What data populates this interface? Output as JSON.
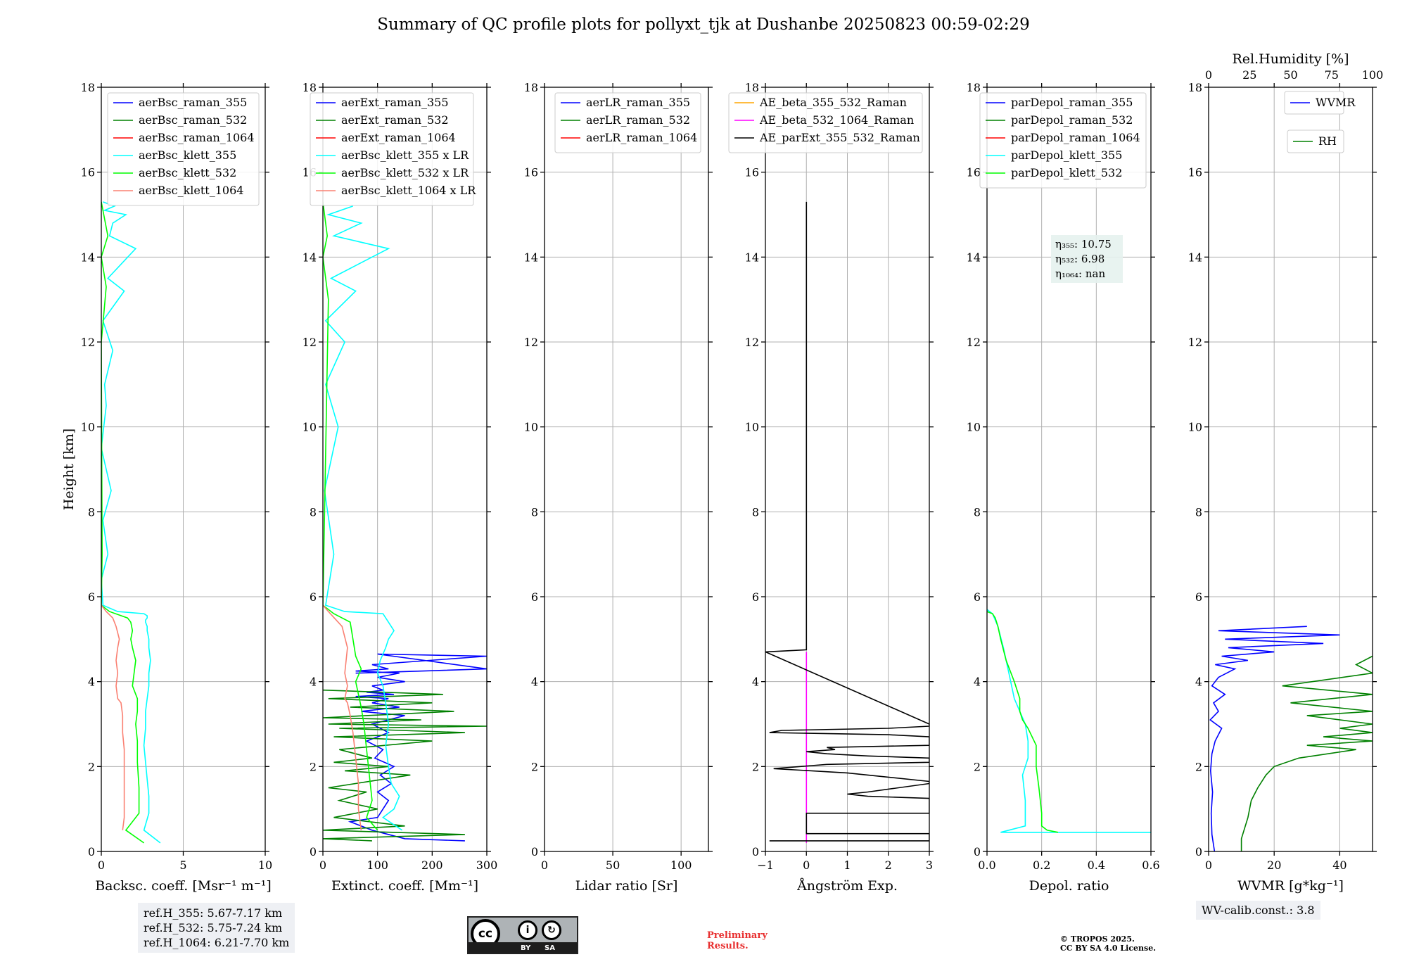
{
  "figure": {
    "title": "Summary of QC profile plots for pollyxt_tjk at Dushanbe 20250823 00:59-02:29",
    "ref_heights": [
      "ref.H_355: 5.67-7.17 km",
      "ref.H_532: 5.75-7.24 km",
      "ref.H_1064: 6.21-7.70 km"
    ],
    "wv_calib": "WV-calib.const.: 3.8",
    "preliminary": [
      "Preliminary",
      "Results."
    ],
    "copyright": [
      "© TROPOS 2025.",
      "CC BY SA 4.0 License."
    ],
    "license_badge": {
      "circle": "cc",
      "by": "BY",
      "sa": "SA",
      "by_icon": "person-icon",
      "sa_icon": "share-alike-icon"
    }
  },
  "colors": {
    "raman_355": "#0000ff",
    "raman_532": "#008000",
    "raman_1064": "#ff0000",
    "klett_355": "#00ffff",
    "klett_532": "#00ff00",
    "klett_1064": "#fa8072",
    "ae_beta_355_532": "#ffa500",
    "ae_beta_532_1064": "#ff00ff",
    "ae_parext": "#000000",
    "wvmr": "#0000ff",
    "rh": "#008000"
  },
  "chart_data": [
    {
      "type": "line",
      "id": "backscatter",
      "xlabel": "Backsc. coeff. [Msr⁻¹ m⁻¹]",
      "ylabel": "Height [km]",
      "xlim": [
        0,
        10
      ],
      "ylim": [
        0,
        18
      ],
      "xticks": [
        0,
        5,
        10
      ],
      "yticks": [
        0,
        2,
        4,
        6,
        8,
        10,
        12,
        14,
        16,
        18
      ],
      "legend": "top-left",
      "series": [
        {
          "name": "aerBsc_raman_355",
          "color": "#0000ff",
          "x": [],
          "y": []
        },
        {
          "name": "aerBsc_raman_532",
          "color": "#008000",
          "x": [],
          "y": []
        },
        {
          "name": "aerBsc_raman_1064",
          "color": "#ff0000",
          "x": [],
          "y": []
        },
        {
          "name": "aerBsc_klett_355",
          "color": "#00ffff",
          "x": [
            3.6,
            2.6,
            2.9,
            2.9,
            2.8,
            2.7,
            2.6,
            2.7,
            2.7,
            2.8,
            2.9,
            2.9,
            3.0,
            2.9,
            2.9,
            2.8,
            2.8,
            2.7,
            2.7,
            2.8,
            2.8,
            2.6,
            1.0,
            0.1,
            0.0,
            0.4,
            0.1,
            0.6,
            0.0,
            0.3,
            0.2,
            0.7,
            0.1,
            1.4,
            0.4,
            2.1,
            0.5,
            0.7,
            1.5,
            0.2,
            0.8,
            0.1
          ],
          "y": [
            0.2,
            0.5,
            0.9,
            1.3,
            1.7,
            2.1,
            2.5,
            2.9,
            3.3,
            3.6,
            3.9,
            4.2,
            4.5,
            4.8,
            5.0,
            5.2,
            5.3,
            5.4,
            5.45,
            5.5,
            5.55,
            5.6,
            5.65,
            5.8,
            6.4,
            7.0,
            7.8,
            8.5,
            9.5,
            10.5,
            11.0,
            11.8,
            12.5,
            13.2,
            13.5,
            14.2,
            14.5,
            14.8,
            15.0,
            15.1,
            15.2,
            15.3
          ]
        },
        {
          "name": "aerBsc_klett_532",
          "color": "#00ff00",
          "x": [
            2.6,
            1.5,
            2.3,
            2.3,
            2.2,
            2.2,
            2.1,
            2.2,
            2.2,
            1.9,
            2.0,
            2.1,
            1.9,
            1.8,
            1.9,
            1.8,
            1.6,
            0.5,
            0.0,
            0.05,
            0.0,
            0.3,
            0.0,
            0.4,
            0.0
          ],
          "y": [
            0.2,
            0.5,
            0.9,
            1.5,
            2.1,
            2.6,
            3.0,
            3.3,
            3.6,
            3.9,
            4.2,
            4.5,
            4.8,
            5.0,
            5.2,
            5.4,
            5.5,
            5.65,
            5.8,
            7.0,
            12.0,
            13.3,
            14.0,
            14.5,
            15.3
          ]
        },
        {
          "name": "aerBsc_klett_1064",
          "color": "#fa8072",
          "x": [
            1.3,
            1.4,
            1.4,
            1.4,
            1.4,
            1.3,
            1.3,
            1.2,
            1.0,
            0.9,
            1.0,
            0.9,
            1.0,
            1.1,
            0.9,
            0.7,
            0.3,
            0.0
          ],
          "y": [
            0.5,
            0.8,
            1.2,
            1.8,
            2.4,
            2.8,
            3.2,
            3.5,
            3.6,
            3.9,
            4.2,
            4.5,
            4.8,
            5.0,
            5.3,
            5.5,
            5.65,
            5.8
          ]
        }
      ]
    },
    {
      "type": "line",
      "id": "extinction",
      "xlabel": "Extinct. coeff. [Mm⁻¹]",
      "xlim": [
        0,
        300
      ],
      "ylim": [
        0,
        18
      ],
      "xticks": [
        0,
        100,
        200,
        300
      ],
      "yticks": [
        0,
        2,
        4,
        6,
        8,
        10,
        12,
        14,
        16,
        18
      ],
      "legend": "top-left",
      "series": [
        {
          "name": "aerExt_raman_355",
          "color": "#0000ff",
          "x": [
            260,
            150,
            90,
            50,
            100,
            110,
            120,
            100,
            125,
            105,
            130,
            95,
            110,
            80,
            120,
            90,
            150,
            70,
            140,
            90,
            120,
            60,
            130,
            80,
            110,
            90,
            150,
            100,
            140,
            60,
            120,
            90,
            300,
            100,
            300,
            60
          ],
          "y": [
            0.25,
            0.3,
            0.5,
            0.7,
            0.8,
            1.0,
            1.2,
            1.4,
            1.6,
            1.8,
            2.0,
            2.2,
            2.4,
            2.6,
            2.8,
            3.0,
            3.2,
            3.3,
            3.4,
            3.5,
            3.6,
            3.65,
            3.7,
            3.75,
            3.8,
            3.9,
            4.0,
            4.1,
            4.2,
            4.25,
            4.3,
            4.4,
            4.6,
            4.65,
            4.3,
            4.2
          ]
        },
        {
          "name": "aerExt_raman_532",
          "color": "#008000",
          "x": [
            90,
            0,
            260,
            0,
            150,
            20,
            100,
            30,
            80,
            10,
            160,
            40,
            120,
            20,
            90,
            30,
            200,
            20,
            260,
            30,
            300,
            10,
            180,
            0,
            240,
            50,
            200,
            10,
            220,
            0
          ],
          "y": [
            0.25,
            0.3,
            0.4,
            0.5,
            0.6,
            0.8,
            1.0,
            1.2,
            1.4,
            1.5,
            1.8,
            1.9,
            2.0,
            2.1,
            2.2,
            2.4,
            2.6,
            2.7,
            2.8,
            2.9,
            2.95,
            3.0,
            3.1,
            3.15,
            3.3,
            3.4,
            3.5,
            3.6,
            3.7,
            3.8
          ]
        },
        {
          "name": "aerExt_raman_1064",
          "color": "#ff0000",
          "x": [],
          "y": []
        },
        {
          "name": "aerBsc_klett_355 x LR",
          "color": "#00ffff",
          "x": [
            145,
            110,
            130,
            140,
            125,
            120,
            115,
            120,
            115,
            110,
            100,
            105,
            115,
            120,
            130,
            125,
            120,
            115,
            110,
            40,
            5,
            20,
            3,
            28,
            5,
            40,
            5,
            60,
            15,
            120,
            20,
            70,
            10,
            55
          ],
          "y": [
            0.5,
            0.8,
            1.0,
            1.3,
            1.6,
            2.0,
            2.5,
            3.0,
            3.5,
            3.9,
            4.2,
            4.5,
            4.8,
            5.0,
            5.2,
            5.3,
            5.4,
            5.5,
            5.6,
            5.65,
            5.8,
            7.0,
            8.5,
            10.0,
            11.0,
            12.0,
            12.5,
            13.2,
            13.5,
            14.2,
            14.5,
            14.8,
            15.0,
            15.2
          ]
        },
        {
          "name": "aerBsc_klett_532 x LR",
          "color": "#00ff00",
          "x": [
            100,
            80,
            90,
            85,
            80,
            75,
            70,
            65,
            60,
            70,
            60,
            55,
            50,
            20,
            0,
            10,
            0,
            8,
            0
          ],
          "y": [
            0.5,
            0.8,
            1.2,
            1.8,
            2.4,
            3.0,
            3.4,
            3.7,
            4.0,
            4.3,
            4.6,
            5.0,
            5.4,
            5.6,
            5.8,
            13.0,
            14.0,
            14.5,
            15.3
          ]
        },
        {
          "name": "aerBsc_klett_1064 x LR",
          "color": "#fa8072",
          "x": [
            70,
            65,
            65,
            60,
            55,
            50,
            45,
            40,
            45,
            40,
            45,
            35,
            10,
            0
          ],
          "y": [
            0.5,
            1.0,
            1.6,
            2.2,
            2.8,
            3.2,
            3.5,
            3.6,
            3.9,
            4.2,
            4.8,
            5.3,
            5.65,
            5.8
          ]
        }
      ]
    },
    {
      "type": "line",
      "id": "lidar_ratio",
      "xlabel": "Lidar ratio [Sr]",
      "xlim": [
        0,
        120
      ],
      "ylim": [
        0,
        18
      ],
      "xticks": [
        0,
        50,
        100
      ],
      "yticks": [
        0,
        2,
        4,
        6,
        8,
        10,
        12,
        14,
        16,
        18
      ],
      "legend": "top-right",
      "series": [
        {
          "name": "aerLR_raman_355",
          "color": "#0000ff",
          "x": [],
          "y": []
        },
        {
          "name": "aerLR_raman_532",
          "color": "#008000",
          "x": [],
          "y": []
        },
        {
          "name": "aerLR_raman_1064",
          "color": "#ff0000",
          "x": [],
          "y": []
        }
      ]
    },
    {
      "type": "line",
      "id": "angstrom",
      "xlabel": "Ångström Exp.",
      "xlim": [
        -1,
        3
      ],
      "ylim": [
        0,
        18
      ],
      "xticks": [
        -1,
        0,
        1,
        2,
        3
      ],
      "yticks": [
        0,
        2,
        4,
        6,
        8,
        10,
        12,
        14,
        16,
        18
      ],
      "legend": "top-center",
      "series": [
        {
          "name": "AE_beta_355_532_Raman",
          "color": "#ffa500",
          "x": [],
          "y": []
        },
        {
          "name": "AE_beta_532_1064_Raman",
          "color": "#ff00ff",
          "x": [
            0,
            0
          ],
          "y": [
            0.2,
            4.7
          ]
        },
        {
          "name": "AE_parExt_355_532_Raman",
          "color": "#000000",
          "x": [
            -0.9,
            3.0,
            3.0,
            0.0,
            0.0,
            3.0,
            3.0,
            1.5,
            1.0,
            1.5,
            3.0,
            3.0,
            1.0,
            -0.8,
            0.5,
            3.0,
            3.0,
            1.5,
            0.5,
            0.0,
            0.7,
            0.5,
            3.0,
            3.0,
            2.0,
            -0.9,
            -0.6,
            2.0,
            3.0,
            3.0,
            -1.0,
            0.0,
            0.0
          ],
          "y": [
            0.25,
            0.25,
            0.42,
            0.42,
            0.9,
            0.9,
            1.25,
            1.3,
            1.35,
            1.4,
            1.6,
            1.65,
            1.85,
            1.95,
            2.05,
            2.1,
            2.2,
            2.25,
            2.3,
            2.35,
            2.4,
            2.45,
            2.5,
            2.7,
            2.75,
            2.8,
            2.85,
            2.9,
            2.95,
            3.0,
            4.7,
            4.75,
            15.3
          ]
        }
      ]
    },
    {
      "type": "line",
      "id": "depolarization",
      "xlabel": "Depol. ratio",
      "xlim": [
        0,
        0.6
      ],
      "ylim": [
        0,
        18
      ],
      "xticks": [
        0.0,
        0.2,
        0.4,
        0.6
      ],
      "yticks": [
        0,
        2,
        4,
        6,
        8,
        10,
        12,
        14,
        16,
        18
      ],
      "legend": "top-left",
      "annotation": [
        "η₃₅₅: 10.75",
        "η₅₃₂: 6.98",
        "η₁₀₆₄: nan"
      ],
      "series": [
        {
          "name": "parDepol_raman_355",
          "color": "#0000ff",
          "x": [],
          "y": []
        },
        {
          "name": "parDepol_raman_532",
          "color": "#008000",
          "x": [],
          "y": []
        },
        {
          "name": "parDepol_raman_1064",
          "color": "#ff0000",
          "x": [],
          "y": []
        },
        {
          "name": "parDepol_klett_355",
          "color": "#00ffff",
          "x": [
            0.6,
            0.05,
            0.14,
            0.14,
            0.13,
            0.15,
            0.15,
            0.14,
            0.12,
            0.1,
            0.08,
            0.06,
            0.04,
            0.02,
            0.0
          ],
          "y": [
            0.45,
            0.45,
            0.6,
            1.2,
            1.8,
            2.2,
            2.6,
            3.0,
            3.3,
            3.6,
            4.2,
            4.8,
            5.3,
            5.6,
            5.7
          ]
        },
        {
          "name": "parDepol_klett_532",
          "color": "#00ff00",
          "x": [
            0.26,
            0.22,
            0.2,
            0.2,
            0.19,
            0.18,
            0.18,
            0.15,
            0.13,
            0.12,
            0.12,
            0.1,
            0.07,
            0.05,
            0.04,
            0.03,
            0.02,
            0.0
          ],
          "y": [
            0.45,
            0.5,
            0.6,
            0.9,
            1.5,
            2.0,
            2.5,
            2.9,
            3.1,
            3.3,
            3.6,
            4.0,
            4.5,
            5.0,
            5.3,
            5.5,
            5.6,
            5.65
          ]
        }
      ]
    },
    {
      "type": "line",
      "id": "water_vapor",
      "xlabel": "WVMR [g*kg⁻¹]",
      "x2label": "Rel.Humidity [%]",
      "xlim": [
        0,
        50
      ],
      "x2lim": [
        0,
        100
      ],
      "ylim": [
        0,
        18
      ],
      "xticks": [
        0,
        20,
        40
      ],
      "x2ticks": [
        0,
        25,
        50,
        75,
        100
      ],
      "yticks": [
        0,
        2,
        4,
        6,
        8,
        10,
        12,
        14,
        16,
        18
      ],
      "legend": "top-right",
      "series": [
        {
          "name": "WVMR",
          "color": "#0000ff",
          "x": [
            1.8,
            1.0,
            0.8,
            1.2,
            0.6,
            1.0,
            2.0,
            4.0,
            0.5,
            3.0,
            1.5,
            5.0,
            1.0,
            2.0,
            3.0,
            8.0,
            2.0,
            12.0,
            4.0,
            20.0,
            6.0,
            35.0,
            5.0,
            40.0,
            3.0,
            30.0
          ],
          "y": [
            0.0,
            0.4,
            0.9,
            1.4,
            1.9,
            2.3,
            2.6,
            2.9,
            3.1,
            3.3,
            3.5,
            3.7,
            3.9,
            4.0,
            4.1,
            4.3,
            4.4,
            4.5,
            4.6,
            4.7,
            4.8,
            4.9,
            5.0,
            5.1,
            5.2,
            5.3
          ]
        },
        {
          "name": "RH",
          "color": "#008000",
          "x": [
            20,
            20,
            24,
            26,
            30,
            35,
            40,
            55,
            90,
            60,
            100,
            70,
            100,
            80,
            100,
            60,
            100,
            50,
            100,
            45,
            100,
            90,
            100
          ],
          "y": [
            0.0,
            0.3,
            0.8,
            1.2,
            1.5,
            1.8,
            2.0,
            2.2,
            2.4,
            2.5,
            2.6,
            2.7,
            2.8,
            2.9,
            3.0,
            3.2,
            3.3,
            3.5,
            3.7,
            3.9,
            4.2,
            4.4,
            4.6
          ]
        }
      ]
    }
  ]
}
